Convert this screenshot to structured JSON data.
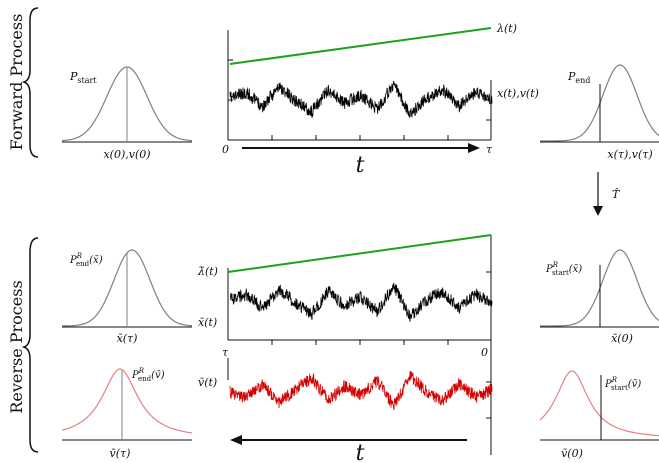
{
  "sections": {
    "forward_title": "Forward Process",
    "reverse_title": "Reverse Process"
  },
  "forward": {
    "p_start_label": "P",
    "p_start_sub": "start",
    "left_axis_label": "x(0),v(0)",
    "lambda_label": "λ(t)",
    "trajectory_label": "x(t),v(t)",
    "time_start": "0",
    "time_end": "τ",
    "time_label": "t",
    "p_end_label": "P",
    "p_end_sub": "end",
    "right_axis_label": "x(τ),v(τ)"
  },
  "operator_label": "T̂",
  "reverse": {
    "p_end_x_label": "P",
    "p_end_x_sub": "end",
    "p_end_x_sup": "R",
    "p_end_x_arg": "(x̄)",
    "left_x_axis_label": "x̄(τ)",
    "p_end_v_label": "P",
    "p_end_v_sub": "end",
    "p_end_v_sup": "R",
    "p_end_v_arg": "(v̄)",
    "left_v_axis_label": "v̄(τ)",
    "lambda_label": "λ̄(t)",
    "x_traj_label": "x̄(t)",
    "v_traj_label": "v̄(t)",
    "time_start": "τ",
    "time_end": "0",
    "time_label": "t",
    "p_start_x_label": "P",
    "p_start_x_sub": "start",
    "p_start_x_sup": "R",
    "p_start_x_arg": "(x̄)",
    "right_x_axis_label": "x̄(0)",
    "p_start_v_label": "P",
    "p_start_v_sub": "start",
    "p_start_v_sup": "R",
    "p_start_v_arg": "(v̄)",
    "right_v_axis_label": "v̄(0)"
  },
  "colors": {
    "curve_gray": "#808080",
    "curve_red": "#e88080",
    "trajectory_black": "#000000",
    "trajectory_red": "#d40000",
    "protocol_green": "#1aa31a"
  }
}
